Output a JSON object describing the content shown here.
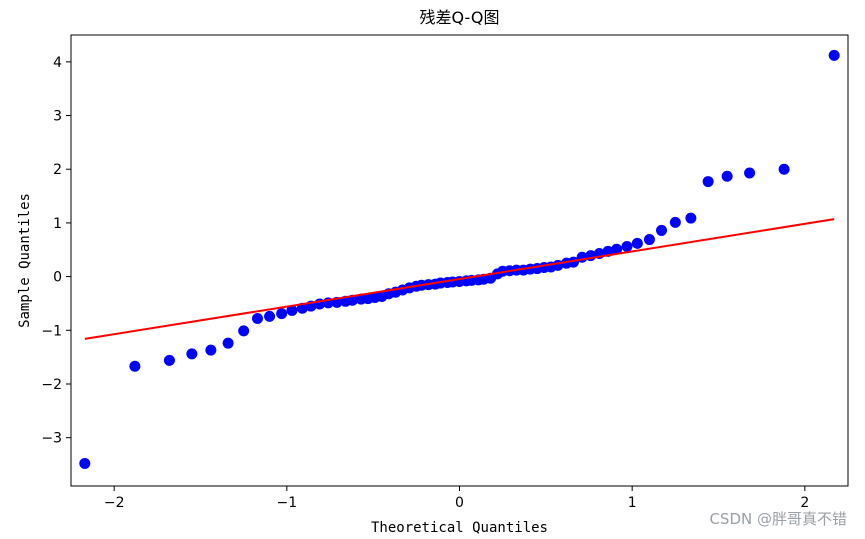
{
  "chart_data": {
    "type": "scatter",
    "title": "残差Q-Q图",
    "xlabel": "Theoretical Quantiles",
    "ylabel": "Sample Quantiles",
    "xlim": [
      -2.25,
      2.25
    ],
    "ylim": [
      -3.9,
      4.5
    ],
    "xticks": [
      -2,
      -1,
      0,
      1,
      2
    ],
    "yticks": [
      -3,
      -2,
      -1,
      0,
      1,
      2,
      3,
      4
    ],
    "xtick_labels": [
      "−2",
      "−1",
      "0",
      "1",
      "2"
    ],
    "ytick_labels": [
      "−3",
      "−2",
      "−1",
      "0",
      "1",
      "2",
      "3",
      "4"
    ],
    "grid": false,
    "point_color": "#0000ff",
    "line_color": "#ff0000",
    "points": [
      {
        "x": -2.17,
        "y": -3.48
      },
      {
        "x": -1.88,
        "y": -1.67
      },
      {
        "x": -1.68,
        "y": -1.56
      },
      {
        "x": -1.55,
        "y": -1.44
      },
      {
        "x": -1.44,
        "y": -1.37
      },
      {
        "x": -1.34,
        "y": -1.24
      },
      {
        "x": -1.25,
        "y": -1.01
      },
      {
        "x": -1.17,
        "y": -0.78
      },
      {
        "x": -1.1,
        "y": -0.74
      },
      {
        "x": -1.03,
        "y": -0.69
      },
      {
        "x": -0.97,
        "y": -0.63
      },
      {
        "x": -0.91,
        "y": -0.59
      },
      {
        "x": -0.86,
        "y": -0.55
      },
      {
        "x": -0.81,
        "y": -0.51
      },
      {
        "x": -0.76,
        "y": -0.49
      },
      {
        "x": -0.71,
        "y": -0.48
      },
      {
        "x": -0.66,
        "y": -0.46
      },
      {
        "x": -0.62,
        "y": -0.44
      },
      {
        "x": -0.57,
        "y": -0.42
      },
      {
        "x": -0.53,
        "y": -0.41
      },
      {
        "x": -0.49,
        "y": -0.39
      },
      {
        "x": -0.45,
        "y": -0.37
      },
      {
        "x": -0.41,
        "y": -0.32
      },
      {
        "x": -0.37,
        "y": -0.29
      },
      {
        "x": -0.33,
        "y": -0.25
      },
      {
        "x": -0.29,
        "y": -0.21
      },
      {
        "x": -0.25,
        "y": -0.18
      },
      {
        "x": -0.22,
        "y": -0.16
      },
      {
        "x": -0.18,
        "y": -0.15
      },
      {
        "x": -0.14,
        "y": -0.14
      },
      {
        "x": -0.11,
        "y": -0.12
      },
      {
        "x": -0.07,
        "y": -0.11
      },
      {
        "x": -0.04,
        "y": -0.1
      },
      {
        "x": 0.0,
        "y": -0.09
      },
      {
        "x": 0.04,
        "y": -0.08
      },
      {
        "x": 0.07,
        "y": -0.07
      },
      {
        "x": 0.11,
        "y": -0.06
      },
      {
        "x": 0.14,
        "y": -0.05
      },
      {
        "x": 0.18,
        "y": -0.03
      },
      {
        "x": 0.22,
        "y": 0.05
      },
      {
        "x": 0.25,
        "y": 0.1
      },
      {
        "x": 0.29,
        "y": 0.11
      },
      {
        "x": 0.33,
        "y": 0.12
      },
      {
        "x": 0.37,
        "y": 0.12
      },
      {
        "x": 0.41,
        "y": 0.14
      },
      {
        "x": 0.45,
        "y": 0.15
      },
      {
        "x": 0.49,
        "y": 0.17
      },
      {
        "x": 0.53,
        "y": 0.18
      },
      {
        "x": 0.57,
        "y": 0.21
      },
      {
        "x": 0.62,
        "y": 0.25
      },
      {
        "x": 0.66,
        "y": 0.27
      },
      {
        "x": 0.71,
        "y": 0.36
      },
      {
        "x": 0.76,
        "y": 0.39
      },
      {
        "x": 0.81,
        "y": 0.43
      },
      {
        "x": 0.86,
        "y": 0.47
      },
      {
        "x": 0.91,
        "y": 0.51
      },
      {
        "x": 0.97,
        "y": 0.56
      },
      {
        "x": 1.03,
        "y": 0.62
      },
      {
        "x": 1.1,
        "y": 0.69
      },
      {
        "x": 1.17,
        "y": 0.86
      },
      {
        "x": 1.25,
        "y": 1.01
      },
      {
        "x": 1.34,
        "y": 1.09
      },
      {
        "x": 1.44,
        "y": 1.77
      },
      {
        "x": 1.55,
        "y": 1.87
      },
      {
        "x": 1.68,
        "y": 1.93
      },
      {
        "x": 1.88,
        "y": 2.0
      },
      {
        "x": 2.17,
        "y": 4.12
      }
    ],
    "reference_line": {
      "x": [
        -2.17,
        2.17
      ],
      "y": [
        -1.16,
        1.07
      ]
    }
  },
  "watermark": "CSDN @胖哥真不错"
}
